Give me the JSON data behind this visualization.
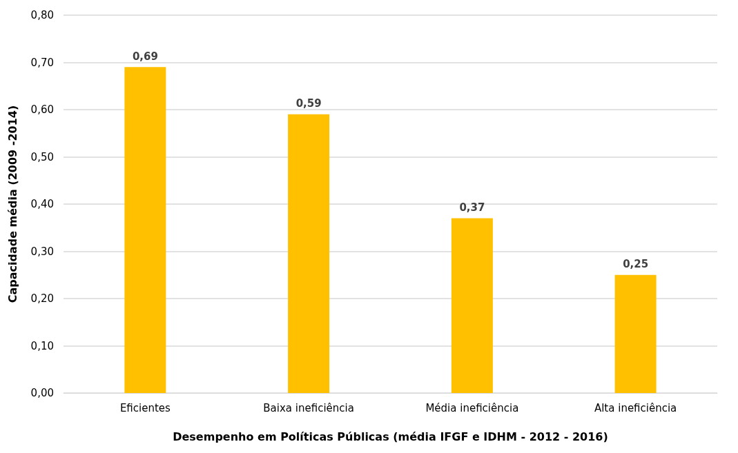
{
  "chart_data": {
    "type": "bar",
    "xlabel": "Desempenho em Políticas Públicas (média IFGF e IDHM - 2012 - 2016)",
    "ylabel": "Capacidade média (2009 -2014)",
    "categories": [
      "Eficientes",
      "Baixa ineficiência",
      "Média ineficiência",
      "Alta ineficiência"
    ],
    "values": [
      0.69,
      0.59,
      0.37,
      0.25
    ],
    "value_labels": [
      "0,69",
      "0,59",
      "0,37",
      "0,25"
    ],
    "color": "#ffc000",
    "ylim": [
      0,
      0.8
    ],
    "yticks": [
      {
        "value": 0,
        "label": "0,00"
      },
      {
        "value": 0.1,
        "label": "0,10"
      },
      {
        "value": 0.2,
        "label": "0,20"
      },
      {
        "value": 0.3,
        "label": "0,30"
      },
      {
        "value": 0.4,
        "label": "0,40"
      },
      {
        "value": 0.5,
        "label": "0,50"
      },
      {
        "value": 0.6,
        "label": "0,60"
      },
      {
        "value": 0.7,
        "label": "0,70"
      },
      {
        "value": 0.8,
        "label": "0,80"
      }
    ],
    "grid": "y"
  }
}
